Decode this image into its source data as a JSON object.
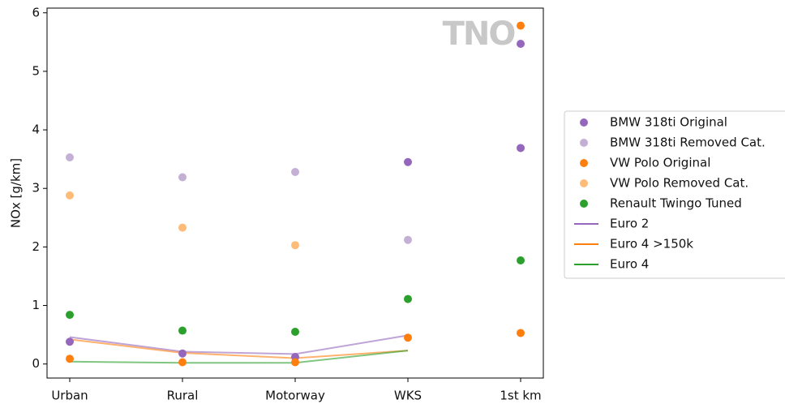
{
  "chart_data": {
    "type": "scatter",
    "ylabel": "NOx [g/km]",
    "watermark": "TNO",
    "categories": [
      "Urban",
      "Rural",
      "Motorway",
      "WKS",
      "1st km"
    ],
    "ylim": [
      -0.24,
      6.08
    ],
    "yticks": [
      0,
      1,
      2,
      3,
      4,
      5,
      6
    ],
    "series": [
      {
        "name": "BMW 318ti Original",
        "type": "scatter",
        "color": "#9467bd",
        "values": [
          0.38,
          0.18,
          0.12,
          3.45,
          [
            3.69,
            5.47
          ]
        ]
      },
      {
        "name": "BMW 318ti Removed Cat.",
        "type": "scatter",
        "color": "#c5b0d5",
        "values": [
          3.53,
          3.19,
          3.28,
          2.12,
          null
        ]
      },
      {
        "name": "VW Polo Original",
        "type": "scatter",
        "color": "#ff7f0e",
        "values": [
          0.09,
          0.03,
          0.03,
          0.45,
          [
            0.53,
            5.78
          ]
        ]
      },
      {
        "name": "VW Polo Removed Cat.",
        "type": "scatter",
        "color": "#ffbb78",
        "values": [
          2.88,
          2.33,
          2.03,
          null,
          null
        ]
      },
      {
        "name": "Renault Twingo Tuned",
        "type": "scatter",
        "color": "#2ca02c",
        "values": [
          0.84,
          0.57,
          0.55,
          1.11,
          1.77
        ]
      },
      {
        "name": "Euro 2",
        "type": "line",
        "color": "#9467bd",
        "values": [
          0.46,
          0.21,
          0.17,
          0.49,
          null
        ]
      },
      {
        "name": "Euro 4 >150k",
        "type": "line",
        "color": "#ff7f0e",
        "values": [
          0.42,
          0.19,
          0.1,
          0.23,
          null
        ]
      },
      {
        "name": "Euro 4",
        "type": "line",
        "color": "#2ca02c",
        "values": [
          0.04,
          0.02,
          0.02,
          0.23,
          null
        ]
      }
    ]
  }
}
